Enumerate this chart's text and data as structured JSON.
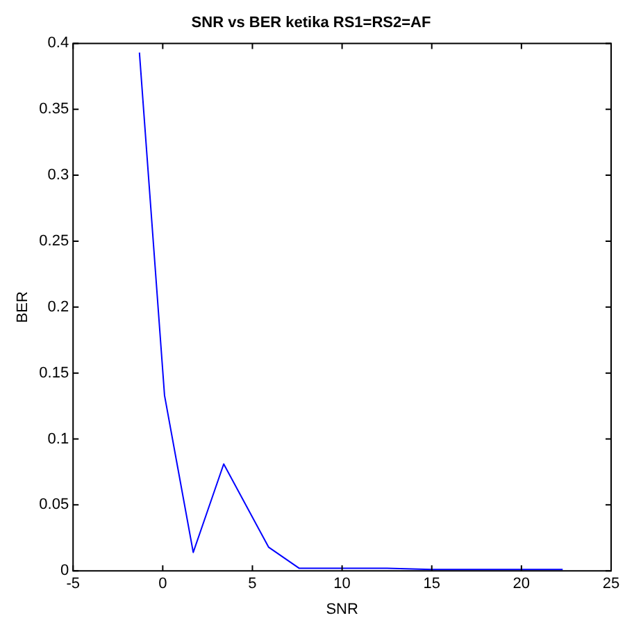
{
  "chart_data": {
    "type": "line",
    "title": "SNR vs BER ketika RS1=RS2=AF",
    "xlabel": "SNR",
    "ylabel": "BER",
    "x": [
      -1.3,
      0.1,
      1.7,
      3.4,
      5.9,
      7.6,
      10,
      12.5,
      15,
      17.5,
      20,
      22.3
    ],
    "series": [
      {
        "color": "#0000ff",
        "values": [
          0.393,
          0.133,
          0.014,
          0.081,
          0.018,
          0.002,
          0.002,
          0.002,
          0.001,
          0.001,
          0.001,
          0.001
        ]
      }
    ],
    "xlim": [
      -5,
      25
    ],
    "xticks": [
      -5,
      0,
      5,
      10,
      15,
      20,
      25
    ],
    "ylim": [
      0,
      0.4
    ],
    "yticks": [
      0,
      0.05,
      0.1,
      0.15,
      0.2,
      0.25,
      0.3,
      0.35,
      0.4
    ],
    "grid": false,
    "legend": false,
    "marker": "none",
    "line_style": "solid"
  }
}
